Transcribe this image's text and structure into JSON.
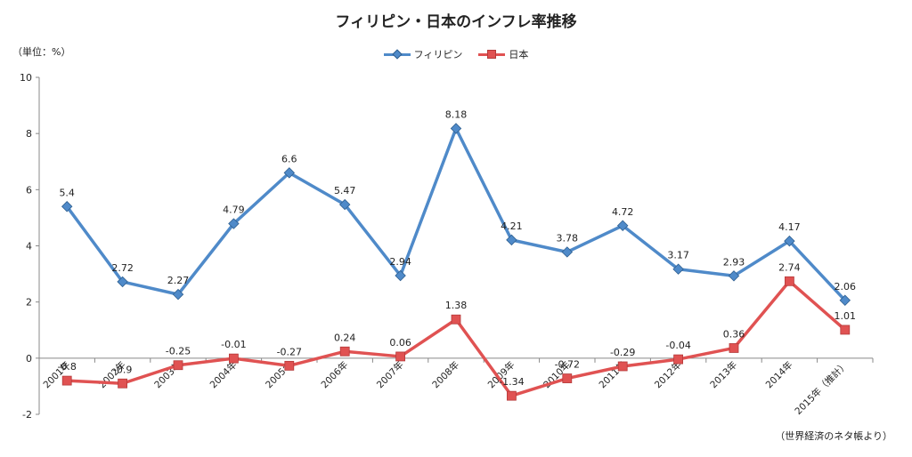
{
  "title": "フィリピン・日本のインフレ率推移",
  "unit_label": "（単位：%）",
  "source_note": "（世界経済のネタ帳より）",
  "colors": {
    "philippines": "#4f8ac9",
    "japan": "#e05252",
    "axis": "#888888"
  },
  "chart_data": {
    "type": "line",
    "title": "フィリピン・日本のインフレ率推移",
    "categories": [
      "2001年",
      "2002年",
      "2003年",
      "2004年",
      "2005年",
      "2006年",
      "2007年",
      "2008年",
      "2009年",
      "2010年",
      "2011年",
      "2012年",
      "2013年",
      "2014年",
      "2015年（推計）"
    ],
    "yticks": [
      -2,
      0,
      2,
      4,
      6,
      8,
      10
    ],
    "ylim": [
      -2,
      10
    ],
    "grid": false,
    "legend": "top-center",
    "series": [
      {
        "name": "フィリピン",
        "marker": "diamond",
        "values": [
          5.4,
          2.72,
          2.27,
          4.79,
          6.6,
          5.47,
          2.94,
          8.18,
          4.21,
          3.78,
          4.72,
          3.17,
          2.93,
          4.17,
          2.06
        ],
        "labels": [
          "5.4",
          "2.72",
          "2.27",
          "4.79",
          "6.6",
          "5.47",
          "2.94",
          "8.18",
          "4.21",
          "3.78",
          "4.72",
          "3.17",
          "2.93",
          "4.17",
          "2.06"
        ]
      },
      {
        "name": "日本",
        "marker": "square",
        "values": [
          -0.8,
          -0.9,
          -0.25,
          -0.01,
          -0.27,
          0.24,
          0.06,
          1.38,
          -1.34,
          -0.72,
          -0.29,
          -0.04,
          0.36,
          2.74,
          1.01
        ],
        "labels": [
          "-0.8",
          "-0.9",
          "-0.25",
          "-0.01",
          "-0.27",
          "0.24",
          "0.06",
          "1.38",
          "-1.34",
          "-0.72",
          "-0.29",
          "-0.04",
          "0.36",
          "2.74",
          "1.01"
        ]
      }
    ]
  }
}
